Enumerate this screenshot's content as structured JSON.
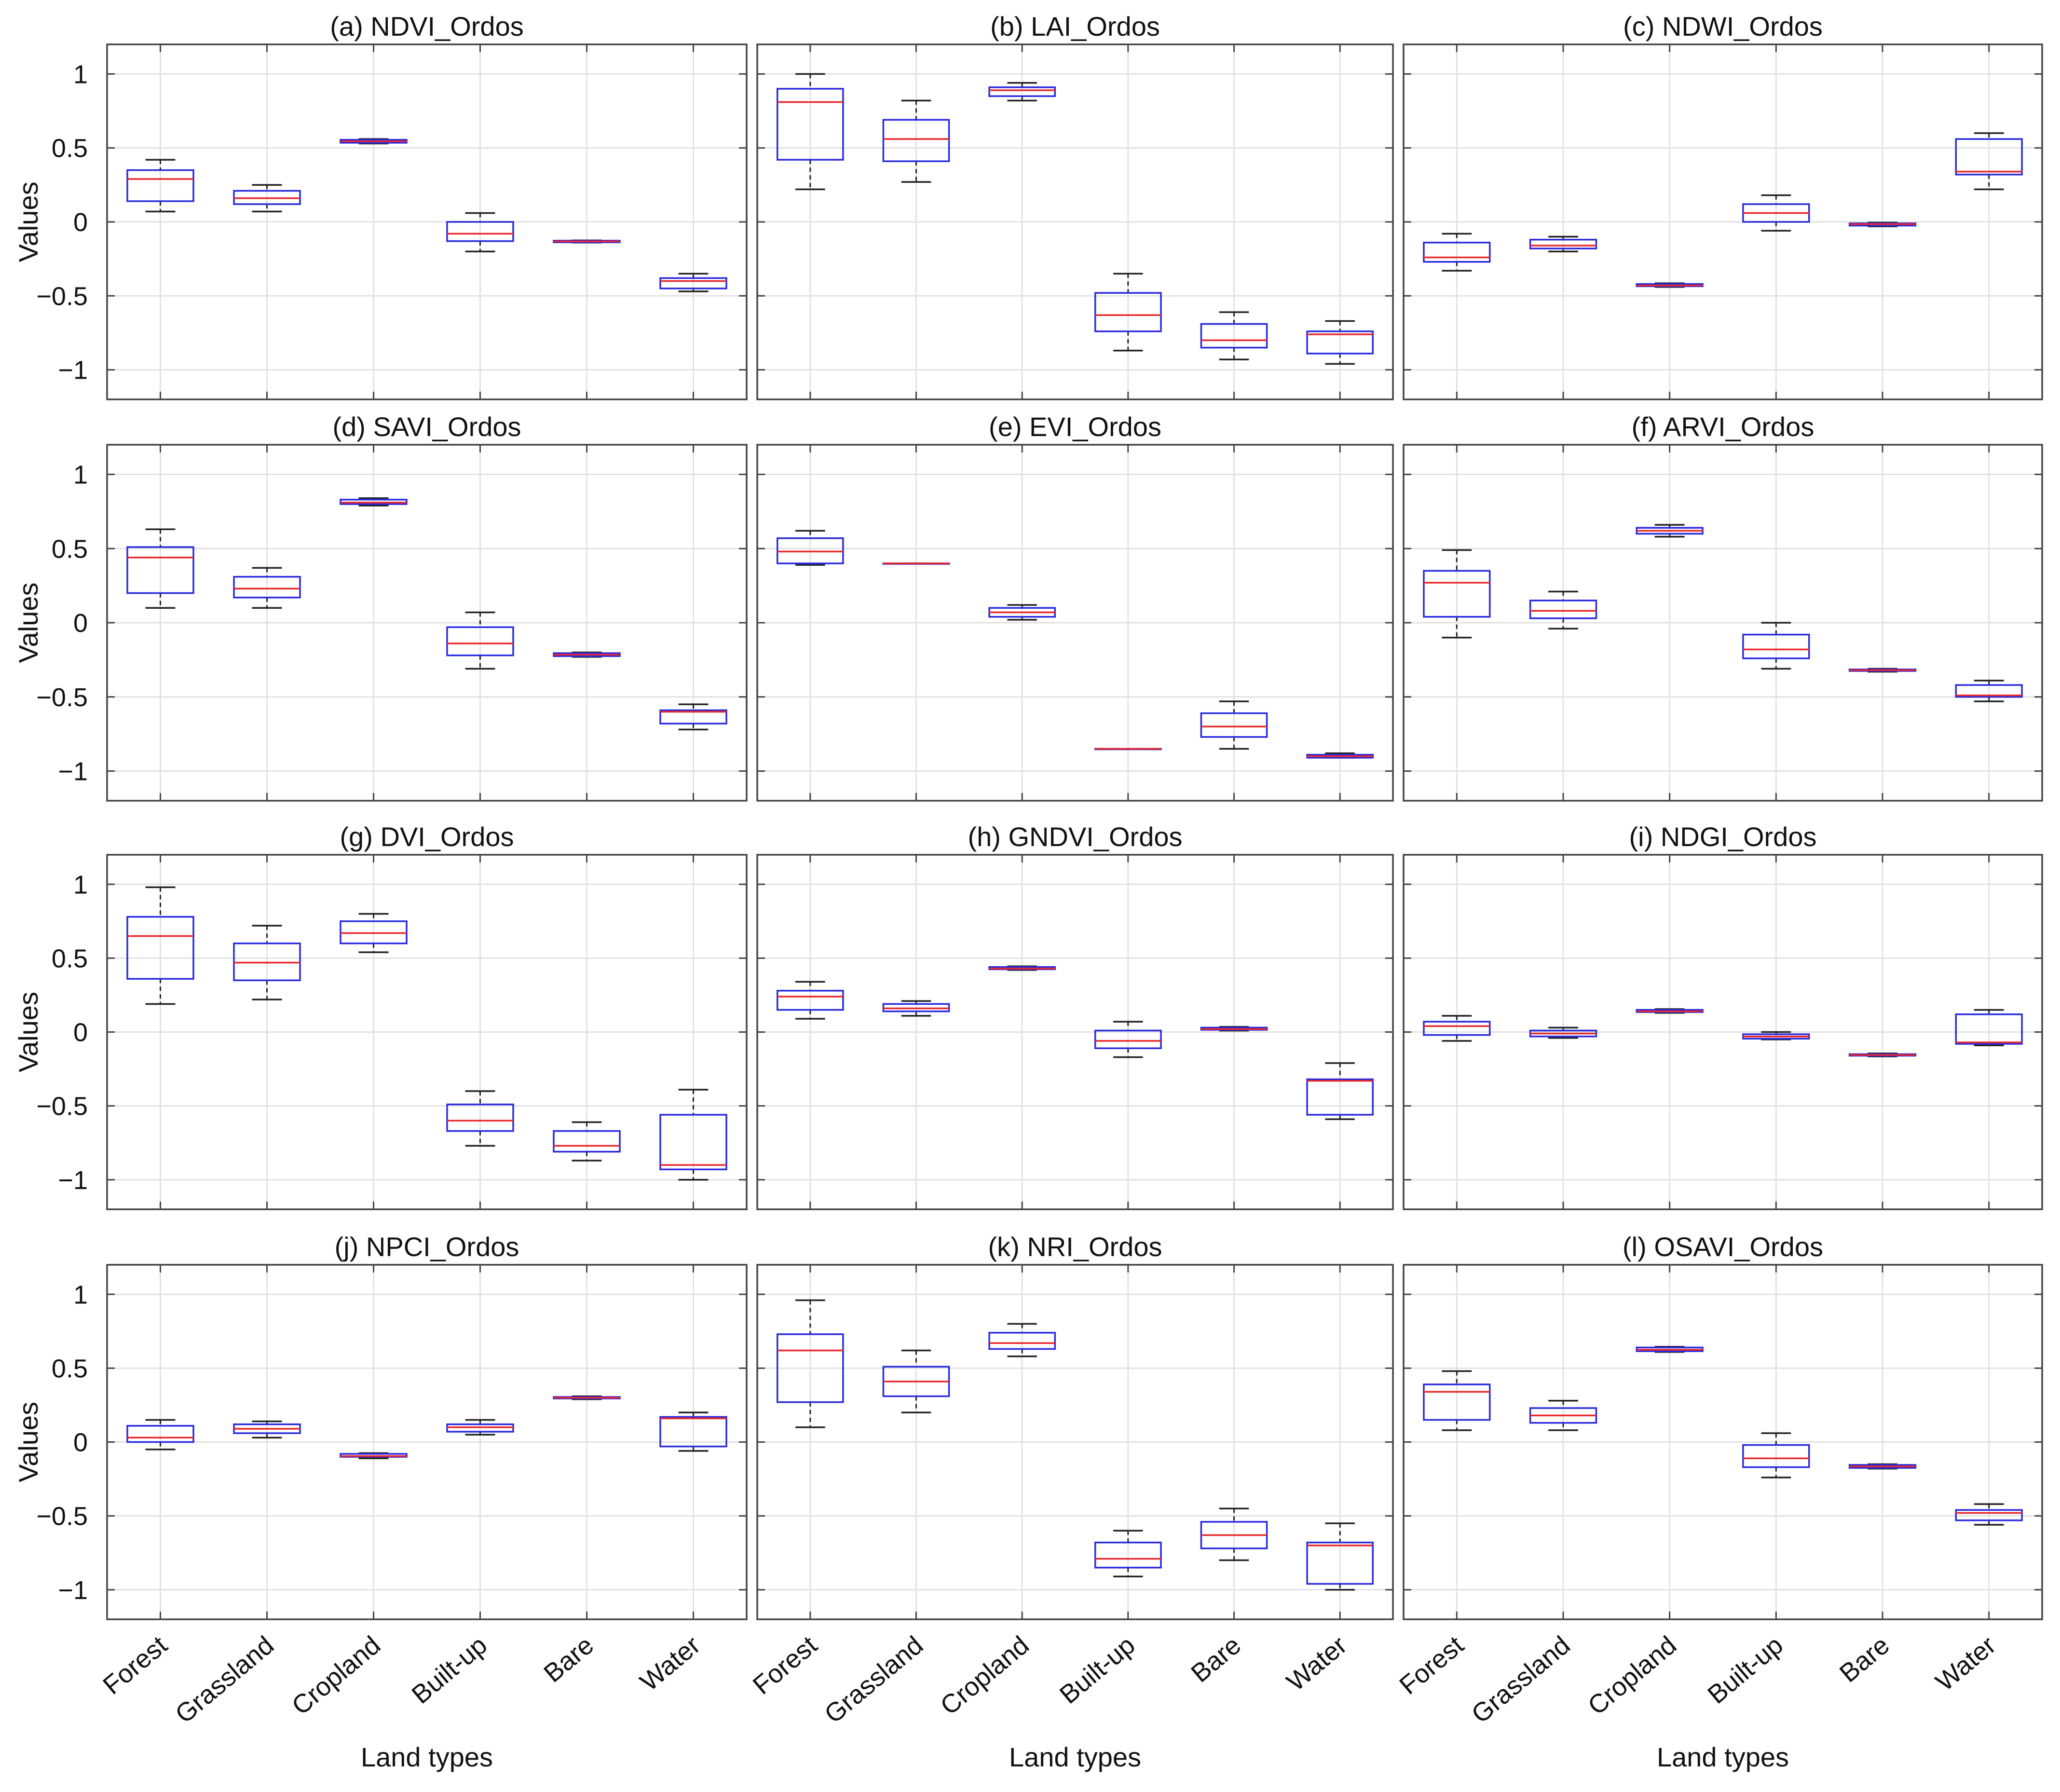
{
  "figure": {
    "ylabel": "Values",
    "xlabel": "Land types",
    "categories": [
      "Forest",
      "Grassland",
      "Cropland",
      "Built-up",
      "Bare",
      "Water"
    ],
    "colors": {
      "box": "#2a2ae0",
      "median": "#e8282b",
      "whisker": "#222222",
      "grid": "#e2e2e2",
      "frame": "#444444"
    }
  },
  "chart_data": [
    {
      "type": "box",
      "title": "(a) NDVI_Ordos",
      "ylim": [
        -1.2,
        1.2
      ],
      "yticks": [
        1,
        0.5,
        0,
        -0.5,
        -1
      ],
      "ytick_labels": [
        "1",
        "0.5",
        "0",
        "−0.5",
        "−1"
      ],
      "grid": true,
      "boxes": [
        {
          "category": "Forest",
          "min": 0.07,
          "q1": 0.14,
          "median": 0.29,
          "q3": 0.35,
          "max": 0.42
        },
        {
          "category": "Grassland",
          "min": 0.07,
          "q1": 0.12,
          "median": 0.16,
          "q3": 0.21,
          "max": 0.25
        },
        {
          "category": "Cropland",
          "min": 0.53,
          "q1": 0.535,
          "median": 0.545,
          "q3": 0.555,
          "max": 0.56
        },
        {
          "category": "Built-up",
          "min": -0.2,
          "q1": -0.13,
          "median": -0.08,
          "q3": 0.0,
          "max": 0.06
        },
        {
          "category": "Bare",
          "min": -0.14,
          "q1": -0.138,
          "median": -0.132,
          "q3": -0.127,
          "max": -0.125
        },
        {
          "category": "Water",
          "min": -0.47,
          "q1": -0.45,
          "median": -0.4,
          "q3": -0.38,
          "max": -0.35
        }
      ]
    },
    {
      "type": "box",
      "title": "(b) LAI_Ordos",
      "ylim": [
        -1.2,
        1.2
      ],
      "yticks": [
        1,
        0.5,
        0,
        -0.5,
        -1
      ],
      "grid": true,
      "boxes": [
        {
          "category": "Forest",
          "min": 0.22,
          "q1": 0.42,
          "median": 0.81,
          "q3": 0.9,
          "max": 1.0
        },
        {
          "category": "Grassland",
          "min": 0.27,
          "q1": 0.41,
          "median": 0.56,
          "q3": 0.69,
          "max": 0.82
        },
        {
          "category": "Cropland",
          "min": 0.82,
          "q1": 0.85,
          "median": 0.89,
          "q3": 0.91,
          "max": 0.94
        },
        {
          "category": "Built-up",
          "min": -0.87,
          "q1": -0.74,
          "median": -0.63,
          "q3": -0.48,
          "max": -0.35
        },
        {
          "category": "Bare",
          "min": -0.93,
          "q1": -0.85,
          "median": -0.8,
          "q3": -0.69,
          "max": -0.61
        },
        {
          "category": "Water",
          "min": -0.96,
          "q1": -0.89,
          "median": -0.76,
          "q3": -0.74,
          "max": -0.67
        }
      ]
    },
    {
      "type": "box",
      "title": "(c) NDWI_Ordos",
      "ylim": [
        -1.2,
        1.2
      ],
      "yticks": [
        1,
        0.5,
        0,
        -0.5,
        -1
      ],
      "grid": true,
      "boxes": [
        {
          "category": "Forest",
          "min": -0.33,
          "q1": -0.27,
          "median": -0.24,
          "q3": -0.14,
          "max": -0.08
        },
        {
          "category": "Grassland",
          "min": -0.2,
          "q1": -0.18,
          "median": -0.16,
          "q3": -0.12,
          "max": -0.1
        },
        {
          "category": "Cropland",
          "min": -0.44,
          "q1": -0.435,
          "median": -0.43,
          "q3": -0.42,
          "max": -0.415
        },
        {
          "category": "Built-up",
          "min": -0.06,
          "q1": 0.0,
          "median": 0.06,
          "q3": 0.12,
          "max": 0.18
        },
        {
          "category": "Bare",
          "min": -0.03,
          "q1": -0.025,
          "median": -0.015,
          "q3": -0.01,
          "max": -0.005
        },
        {
          "category": "Water",
          "min": 0.22,
          "q1": 0.32,
          "median": 0.34,
          "q3": 0.56,
          "max": 0.6
        }
      ]
    },
    {
      "type": "box",
      "title": "(d) SAVI_Ordos",
      "ylim": [
        -1.2,
        1.2
      ],
      "yticks": [
        1,
        0.5,
        0,
        -0.5,
        -1
      ],
      "grid": true,
      "boxes": [
        {
          "category": "Forest",
          "min": 0.1,
          "q1": 0.2,
          "median": 0.44,
          "q3": 0.51,
          "max": 0.63
        },
        {
          "category": "Grassland",
          "min": 0.1,
          "q1": 0.17,
          "median": 0.23,
          "q3": 0.31,
          "max": 0.37
        },
        {
          "category": "Cropland",
          "min": 0.79,
          "q1": 0.8,
          "median": 0.81,
          "q3": 0.83,
          "max": 0.84
        },
        {
          "category": "Built-up",
          "min": -0.31,
          "q1": -0.22,
          "median": -0.14,
          "q3": -0.03,
          "max": 0.07
        },
        {
          "category": "Bare",
          "min": -0.23,
          "q1": -0.225,
          "median": -0.215,
          "q3": -0.205,
          "max": -0.2
        },
        {
          "category": "Water",
          "min": -0.72,
          "q1": -0.68,
          "median": -0.6,
          "q3": -0.59,
          "max": -0.55
        }
      ]
    },
    {
      "type": "box",
      "title": "(e) EVI_Ordos",
      "ylim": [
        -1.2,
        1.2
      ],
      "yticks": [
        1,
        0.5,
        0,
        -0.5,
        -1
      ],
      "grid": true,
      "boxes": [
        {
          "category": "Forest",
          "min": 0.39,
          "q1": 0.4,
          "median": 0.48,
          "q3": 0.57,
          "max": 0.62
        },
        {
          "category": "Grassland",
          "min": 0.4,
          "q1": 0.4,
          "median": 0.4,
          "q3": 0.4,
          "max": 0.4
        },
        {
          "category": "Cropland",
          "min": 0.02,
          "q1": 0.04,
          "median": 0.07,
          "q3": 0.1,
          "max": 0.12
        },
        {
          "category": "Built-up",
          "min": -0.85,
          "q1": -0.85,
          "median": -0.85,
          "q3": -0.85,
          "max": -0.85
        },
        {
          "category": "Bare",
          "min": -0.85,
          "q1": -0.77,
          "median": -0.7,
          "q3": -0.61,
          "max": -0.53
        },
        {
          "category": "Water",
          "min": -0.91,
          "q1": -0.91,
          "median": -0.9,
          "q3": -0.89,
          "max": -0.88
        }
      ]
    },
    {
      "type": "box",
      "title": "(f) ARVI_Ordos",
      "ylim": [
        -1.2,
        1.2
      ],
      "yticks": [
        1,
        0.5,
        0,
        -0.5,
        -1
      ],
      "grid": true,
      "boxes": [
        {
          "category": "Forest",
          "min": -0.1,
          "q1": 0.04,
          "median": 0.27,
          "q3": 0.35,
          "max": 0.49
        },
        {
          "category": "Grassland",
          "min": -0.04,
          "q1": 0.03,
          "median": 0.08,
          "q3": 0.15,
          "max": 0.21
        },
        {
          "category": "Cropland",
          "min": 0.58,
          "q1": 0.6,
          "median": 0.62,
          "q3": 0.64,
          "max": 0.66
        },
        {
          "category": "Built-up",
          "min": -0.31,
          "q1": -0.24,
          "median": -0.18,
          "q3": -0.08,
          "max": 0.0
        },
        {
          "category": "Bare",
          "min": -0.33,
          "q1": -0.325,
          "median": -0.32,
          "q3": -0.315,
          "max": -0.31
        },
        {
          "category": "Water",
          "min": -0.53,
          "q1": -0.5,
          "median": -0.49,
          "q3": -0.42,
          "max": -0.39
        }
      ]
    },
    {
      "type": "box",
      "title": "(g) DVI_Ordos",
      "ylim": [
        -1.2,
        1.2
      ],
      "yticks": [
        1,
        0.5,
        0,
        -0.5,
        -1
      ],
      "grid": true,
      "boxes": [
        {
          "category": "Forest",
          "min": 0.19,
          "q1": 0.36,
          "median": 0.65,
          "q3": 0.78,
          "max": 0.98
        },
        {
          "category": "Grassland",
          "min": 0.22,
          "q1": 0.35,
          "median": 0.47,
          "q3": 0.6,
          "max": 0.72
        },
        {
          "category": "Cropland",
          "min": 0.54,
          "q1": 0.6,
          "median": 0.67,
          "q3": 0.75,
          "max": 0.8
        },
        {
          "category": "Built-up",
          "min": -0.77,
          "q1": -0.67,
          "median": -0.6,
          "q3": -0.49,
          "max": -0.4
        },
        {
          "category": "Bare",
          "min": -0.87,
          "q1": -0.81,
          "median": -0.77,
          "q3": -0.67,
          "max": -0.61
        },
        {
          "category": "Water",
          "min": -1.0,
          "q1": -0.93,
          "median": -0.9,
          "q3": -0.56,
          "max": -0.39
        }
      ]
    },
    {
      "type": "box",
      "title": "(h) GNDVI_Ordos",
      "ylim": [
        -1.2,
        1.2
      ],
      "yticks": [
        1,
        0.5,
        0,
        -0.5,
        -1
      ],
      "grid": true,
      "boxes": [
        {
          "category": "Forest",
          "min": 0.09,
          "q1": 0.15,
          "median": 0.24,
          "q3": 0.28,
          "max": 0.34
        },
        {
          "category": "Grassland",
          "min": 0.11,
          "q1": 0.14,
          "median": 0.16,
          "q3": 0.19,
          "max": 0.21
        },
        {
          "category": "Cropland",
          "min": 0.42,
          "q1": 0.425,
          "median": 0.43,
          "q3": 0.44,
          "max": 0.445
        },
        {
          "category": "Built-up",
          "min": -0.17,
          "q1": -0.11,
          "median": -0.06,
          "q3": 0.01,
          "max": 0.07
        },
        {
          "category": "Bare",
          "min": 0.01,
          "q1": 0.015,
          "median": 0.02,
          "q3": 0.03,
          "max": 0.035
        },
        {
          "category": "Water",
          "min": -0.59,
          "q1": -0.56,
          "median": -0.33,
          "q3": -0.32,
          "max": -0.21
        }
      ]
    },
    {
      "type": "box",
      "title": "(i) NDGI_Ordos",
      "ylim": [
        -1.2,
        1.2
      ],
      "yticks": [
        1,
        0.5,
        0,
        -0.5,
        -1
      ],
      "grid": true,
      "boxes": [
        {
          "category": "Forest",
          "min": -0.06,
          "q1": -0.02,
          "median": 0.04,
          "q3": 0.07,
          "max": 0.11
        },
        {
          "category": "Grassland",
          "min": -0.04,
          "q1": -0.03,
          "median": -0.01,
          "q3": 0.01,
          "max": 0.03
        },
        {
          "category": "Cropland",
          "min": 0.13,
          "q1": 0.135,
          "median": 0.14,
          "q3": 0.15,
          "max": 0.155
        },
        {
          "category": "Built-up",
          "min": -0.05,
          "q1": -0.045,
          "median": -0.03,
          "q3": -0.015,
          "max": 0.0
        },
        {
          "category": "Bare",
          "min": -0.165,
          "q1": -0.16,
          "median": -0.155,
          "q3": -0.15,
          "max": -0.145
        },
        {
          "category": "Water",
          "min": -0.09,
          "q1": -0.08,
          "median": -0.07,
          "q3": 0.12,
          "max": 0.15
        }
      ]
    },
    {
      "type": "box",
      "title": "(j) NPCI_Ordos",
      "ylim": [
        -1.2,
        1.2
      ],
      "yticks": [
        1,
        0.5,
        0,
        -0.5,
        -1
      ],
      "grid": true,
      "boxes": [
        {
          "category": "Forest",
          "min": -0.05,
          "q1": 0.0,
          "median": 0.03,
          "q3": 0.11,
          "max": 0.15
        },
        {
          "category": "Grassland",
          "min": 0.03,
          "q1": 0.06,
          "median": 0.09,
          "q3": 0.12,
          "max": 0.14
        },
        {
          "category": "Cropland",
          "min": -0.11,
          "q1": -0.1,
          "median": -0.095,
          "q3": -0.08,
          "max": -0.075
        },
        {
          "category": "Built-up",
          "min": 0.05,
          "q1": 0.07,
          "median": 0.1,
          "q3": 0.12,
          "max": 0.15
        },
        {
          "category": "Bare",
          "min": 0.29,
          "q1": 0.295,
          "median": 0.3,
          "q3": 0.305,
          "max": 0.31
        },
        {
          "category": "Water",
          "min": -0.06,
          "q1": -0.03,
          "median": 0.16,
          "q3": 0.17,
          "max": 0.2
        }
      ]
    },
    {
      "type": "box",
      "title": "(k) NRI_Ordos",
      "ylim": [
        -1.2,
        1.2
      ],
      "yticks": [
        1,
        0.5,
        0,
        -0.5,
        -1
      ],
      "grid": true,
      "boxes": [
        {
          "category": "Forest",
          "min": 0.1,
          "q1": 0.27,
          "median": 0.62,
          "q3": 0.73,
          "max": 0.96
        },
        {
          "category": "Grassland",
          "min": 0.2,
          "q1": 0.31,
          "median": 0.41,
          "q3": 0.51,
          "max": 0.62
        },
        {
          "category": "Cropland",
          "min": 0.58,
          "q1": 0.63,
          "median": 0.67,
          "q3": 0.74,
          "max": 0.8
        },
        {
          "category": "Built-up",
          "min": -0.91,
          "q1": -0.85,
          "median": -0.79,
          "q3": -0.68,
          "max": -0.6
        },
        {
          "category": "Bare",
          "min": -0.8,
          "q1": -0.72,
          "median": -0.63,
          "q3": -0.54,
          "max": -0.45
        },
        {
          "category": "Water",
          "min": -1.0,
          "q1": -0.96,
          "median": -0.7,
          "q3": -0.68,
          "max": -0.55
        }
      ]
    },
    {
      "type": "box",
      "title": "(l) OSAVI_Ordos",
      "ylim": [
        -1.2,
        1.2
      ],
      "yticks": [
        1,
        0.5,
        0,
        -0.5,
        -1
      ],
      "grid": true,
      "boxes": [
        {
          "category": "Forest",
          "min": 0.08,
          "q1": 0.15,
          "median": 0.34,
          "q3": 0.39,
          "max": 0.48
        },
        {
          "category": "Grassland",
          "min": 0.08,
          "q1": 0.13,
          "median": 0.18,
          "q3": 0.23,
          "max": 0.28
        },
        {
          "category": "Cropland",
          "min": 0.61,
          "q1": 0.615,
          "median": 0.625,
          "q3": 0.64,
          "max": 0.645
        },
        {
          "category": "Built-up",
          "min": -0.24,
          "q1": -0.17,
          "median": -0.11,
          "q3": -0.02,
          "max": 0.06
        },
        {
          "category": "Bare",
          "min": -0.18,
          "q1": -0.175,
          "median": -0.165,
          "q3": -0.155,
          "max": -0.15
        },
        {
          "category": "Water",
          "min": -0.56,
          "q1": -0.53,
          "median": -0.48,
          "q3": -0.46,
          "max": -0.42
        }
      ]
    }
  ]
}
